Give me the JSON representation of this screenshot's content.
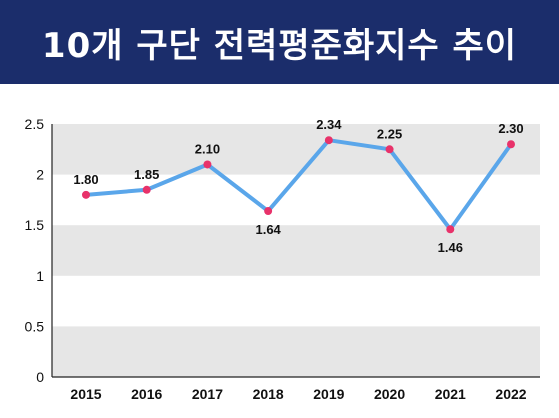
{
  "header": {
    "title": "10개 구단 전력평준화지수 추이"
  },
  "colors": {
    "banner": "#1b2d6b",
    "line": "#5aa6ea",
    "marker": "#e8326a",
    "band": "#e6e6e6"
  },
  "chart_data": {
    "type": "line",
    "title": "10개 구단 전력평준화지수 추이",
    "categories": [
      "2015",
      "2016",
      "2017",
      "2018",
      "2019",
      "2020",
      "2021",
      "2022"
    ],
    "series": [
      {
        "values": [
          1.8,
          1.85,
          2.1,
          1.64,
          2.34,
          2.25,
          1.46,
          2.3
        ],
        "labels": [
          "1.80",
          "1.85",
          "2.10",
          "1.64",
          "2.34",
          "2.25",
          "1.46",
          "2.30"
        ]
      }
    ],
    "yticks": [
      "0",
      "0.5",
      "1",
      "1.5",
      "2",
      "2.5"
    ],
    "ylim": [
      0,
      2.5
    ],
    "xlabel": "",
    "ylabel": "",
    "grid": "alternating horizontal bands",
    "legend": "none"
  }
}
